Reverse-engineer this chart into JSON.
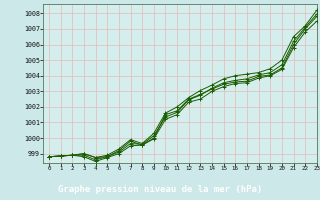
{
  "title": "",
  "xlabel": "Graphe pression niveau de la mer (hPa)",
  "xlim": [
    -0.5,
    23
  ],
  "ylim": [
    998.4,
    1008.6
  ],
  "yticks": [
    999,
    1000,
    1001,
    1002,
    1003,
    1004,
    1005,
    1006,
    1007,
    1008
  ],
  "xticks": [
    0,
    1,
    2,
    3,
    4,
    5,
    6,
    7,
    8,
    9,
    10,
    11,
    12,
    13,
    14,
    15,
    16,
    17,
    18,
    19,
    20,
    21,
    22,
    23
  ],
  "background_color": "#cce8e8",
  "plot_bg_color": "#d4eeee",
  "grid_color": "#e8b8b8",
  "line_color": "#1a5c00",
  "xlabel_bg": "#2d7a2d",
  "xlabel_fg": "#ffffff",
  "series": [
    [
      998.8,
      998.85,
      998.9,
      999.0,
      998.75,
      998.8,
      999.2,
      999.8,
      999.55,
      1000.0,
      1001.5,
      1001.75,
      1002.5,
      1002.8,
      1003.15,
      1003.45,
      1003.6,
      1003.65,
      1003.95,
      1004.05,
      1004.5,
      1006.0,
      1007.0,
      1007.8
    ],
    [
      998.8,
      998.85,
      998.9,
      999.0,
      998.75,
      998.9,
      999.3,
      999.9,
      999.65,
      1000.3,
      1001.6,
      1002.0,
      1002.6,
      1003.05,
      1003.4,
      1003.8,
      1004.0,
      1004.1,
      1004.2,
      1004.45,
      1005.0,
      1006.5,
      1007.2,
      1008.2
    ],
    [
      998.8,
      998.85,
      998.9,
      998.8,
      998.5,
      998.75,
      999.0,
      999.5,
      999.55,
      999.95,
      1001.2,
      1001.5,
      1002.3,
      1002.5,
      1003.0,
      1003.3,
      1003.5,
      1003.55,
      1003.85,
      1004.0,
      1004.4,
      1005.8,
      1006.8,
      1007.5
    ],
    [
      998.8,
      998.85,
      998.9,
      998.9,
      998.6,
      998.82,
      999.1,
      999.65,
      999.6,
      1000.15,
      1001.35,
      1001.65,
      1002.45,
      1002.75,
      1003.2,
      1003.55,
      1003.7,
      1003.8,
      1004.05,
      1004.2,
      1004.7,
      1006.2,
      1007.1,
      1007.95
    ]
  ]
}
